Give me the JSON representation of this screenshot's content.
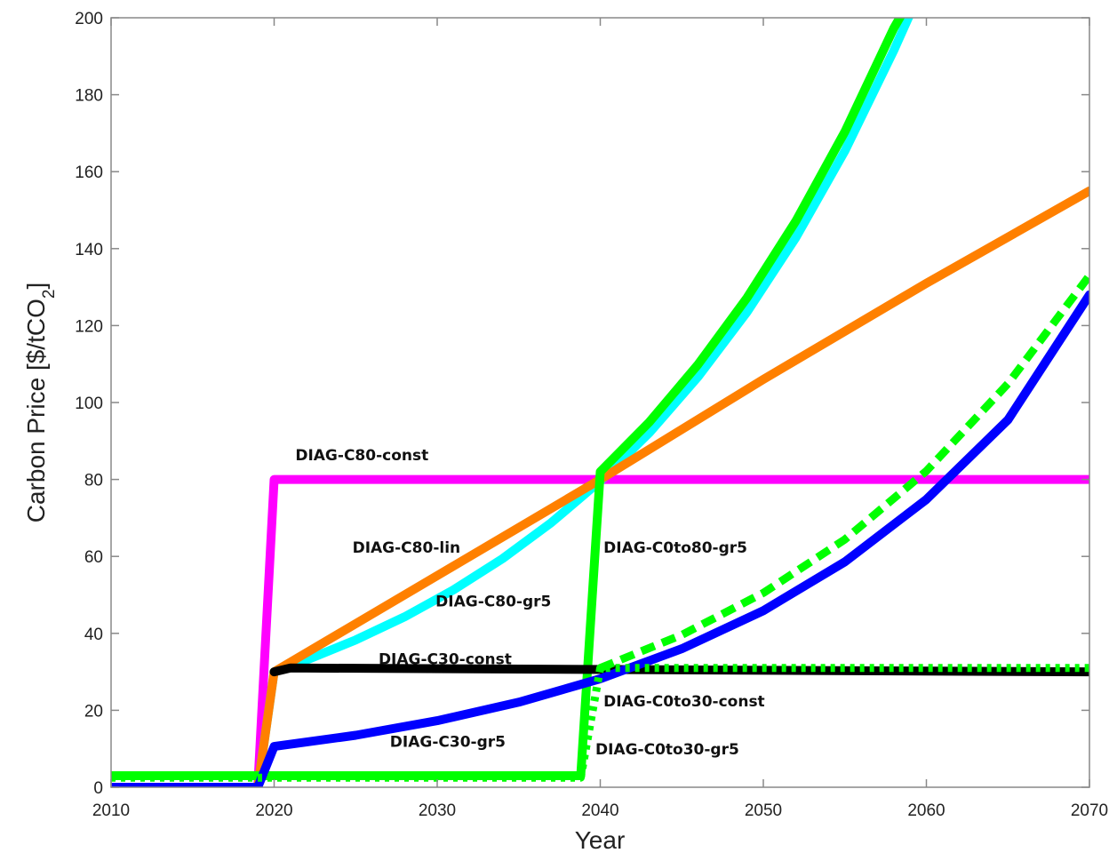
{
  "chart_data": {
    "type": "line",
    "title": "",
    "xlabel": "Year",
    "ylabel": "Carbon Price [$/tCO2]",
    "ylabel_parts": {
      "main": "Carbon Price [$/tCO",
      "sub": "2",
      "end": "]"
    },
    "xlim": [
      2010,
      2070
    ],
    "ylim": [
      0,
      200
    ],
    "xticks": [
      "2010",
      "2020",
      "2030",
      "2040",
      "2050",
      "2060",
      "2070"
    ],
    "yticks": [
      "0",
      "20",
      "40",
      "60",
      "80",
      "100",
      "120",
      "140",
      "160",
      "180",
      "200"
    ],
    "grid": false,
    "legend": "none",
    "series": [
      {
        "name": "DIAG-C80-const",
        "color": "#ff00ff",
        "dash": "solid",
        "points": [
          [
            2010,
            0
          ],
          [
            2019,
            0
          ],
          [
            2020,
            80
          ],
          [
            2070,
            80
          ]
        ]
      },
      {
        "name": "DIAG-C80-gr5",
        "color": "#00ffff",
        "dash": "solid",
        "points": [
          [
            2010,
            0
          ],
          [
            2019,
            0
          ],
          [
            2020,
            30
          ],
          [
            2022,
            33.1
          ],
          [
            2025,
            38.3
          ],
          [
            2028,
            44.3
          ],
          [
            2031,
            51.3
          ],
          [
            2034,
            59.4
          ],
          [
            2037,
            68.8
          ],
          [
            2040,
            79.6
          ],
          [
            2043,
            92.1
          ],
          [
            2046,
            106.7
          ],
          [
            2049,
            123.5
          ],
          [
            2052,
            142.9
          ],
          [
            2055,
            165.4
          ],
          [
            2058,
            191.5
          ],
          [
            2059,
            201
          ]
        ]
      },
      {
        "name": "DIAG-C80-lin",
        "color": "#ff8000",
        "dash": "solid",
        "points": [
          [
            2010,
            0
          ],
          [
            2019,
            0
          ],
          [
            2020,
            30
          ],
          [
            2040,
            80
          ],
          [
            2050,
            106
          ],
          [
            2060,
            131
          ],
          [
            2070,
            155
          ]
        ]
      },
      {
        "name": "DIAG-C0to80-gr5",
        "color": "#00ff00",
        "dash": "solid",
        "points": [
          [
            2010,
            3
          ],
          [
            2038.8,
            3
          ],
          [
            2040,
            82
          ],
          [
            2043,
            94.9
          ],
          [
            2046,
            109.9
          ],
          [
            2049,
            127.2
          ],
          [
            2052,
            147.2
          ],
          [
            2055,
            170.4
          ],
          [
            2058,
            197.3
          ],
          [
            2058.5,
            201
          ]
        ]
      },
      {
        "name": "DIAG-C30-const",
        "color": "#000000",
        "dash": "solid",
        "points": [
          [
            2020,
            30
          ],
          [
            2021,
            31
          ],
          [
            2070,
            30
          ]
        ]
      },
      {
        "name": "DIAG-C30-gr5",
        "color": "#0000ff",
        "dash": "solid",
        "points": [
          [
            2010,
            0
          ],
          [
            2019,
            0
          ],
          [
            2020,
            10.6
          ],
          [
            2025,
            13.5
          ],
          [
            2030,
            17.3
          ],
          [
            2035,
            22.1
          ],
          [
            2040,
            28.2
          ],
          [
            2045,
            36
          ],
          [
            2050,
            45.9
          ],
          [
            2055,
            58.6
          ],
          [
            2060,
            74.8
          ],
          [
            2065,
            95.5
          ],
          [
            2070,
            128
          ]
        ]
      },
      {
        "name": "DIAG-C0to30-const",
        "color": "#00ff00",
        "dash": "dotted",
        "points": [
          [
            2010,
            2.5
          ],
          [
            2038.8,
            2.5
          ],
          [
            2040,
            31
          ],
          [
            2070,
            31
          ]
        ]
      },
      {
        "name": "DIAG-C0to30-gr5",
        "color": "#00ff00",
        "dash": "dashed",
        "points": [
          [
            2040,
            31
          ],
          [
            2045,
            39.6
          ],
          [
            2050,
            50.5
          ],
          [
            2055,
            64.4
          ],
          [
            2060,
            82.2
          ],
          [
            2065,
            104.9
          ],
          [
            2070,
            133
          ]
        ]
      }
    ],
    "annotations": [
      {
        "text": "DIAG-C80-const",
        "x": 2021.3,
        "y": 85
      },
      {
        "text": "DIAG-C80-lin",
        "x": 2024.8,
        "y": 61
      },
      {
        "text": "DIAG-C80-gr5",
        "x": 2029.9,
        "y": 47
      },
      {
        "text": "DIAG-C0to80-gr5",
        "x": 2040.2,
        "y": 61
      },
      {
        "text": "DIAG-C30-const",
        "x": 2026.4,
        "y": 32
      },
      {
        "text": "DIAG-C0to30-const",
        "x": 2040.2,
        "y": 21
      },
      {
        "text": "DIAG-C30-gr5",
        "x": 2027.1,
        "y": 10.5
      },
      {
        "text": "DIAG-C0to30-gr5",
        "x": 2039.7,
        "y": 8.6
      }
    ]
  }
}
